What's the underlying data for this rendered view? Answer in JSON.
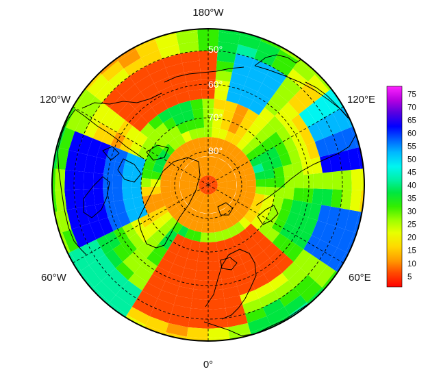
{
  "map": {
    "projection": "north-polar-stereographic",
    "lon_labels": {
      "top": "180°W",
      "upper_left": "120°W",
      "upper_right": "120°E",
      "lower_left": "60°W",
      "lower_right": "60°E",
      "bottom": "0°"
    },
    "lat_labels": [
      "50°",
      "60°",
      "70°",
      "80°"
    ],
    "colorbar": {
      "ticks": [
        "75",
        "70",
        "65",
        "60",
        "55",
        "50",
        "45",
        "40",
        "35",
        "30",
        "25",
        "20",
        "15",
        "10",
        "5"
      ],
      "min": 1,
      "max": 78,
      "colors_low_to_high": [
        "#ff0000",
        "#ff4a00",
        "#ff9900",
        "#ffd800",
        "#e8ff00",
        "#a0ff00",
        "#33ee00",
        "#00e640",
        "#00f0a0",
        "#00f5f0",
        "#00b8ff",
        "#0066ff",
        "#0000ff",
        "#5a00e0",
        "#b400e0",
        "#ff22ff"
      ]
    }
  }
}
